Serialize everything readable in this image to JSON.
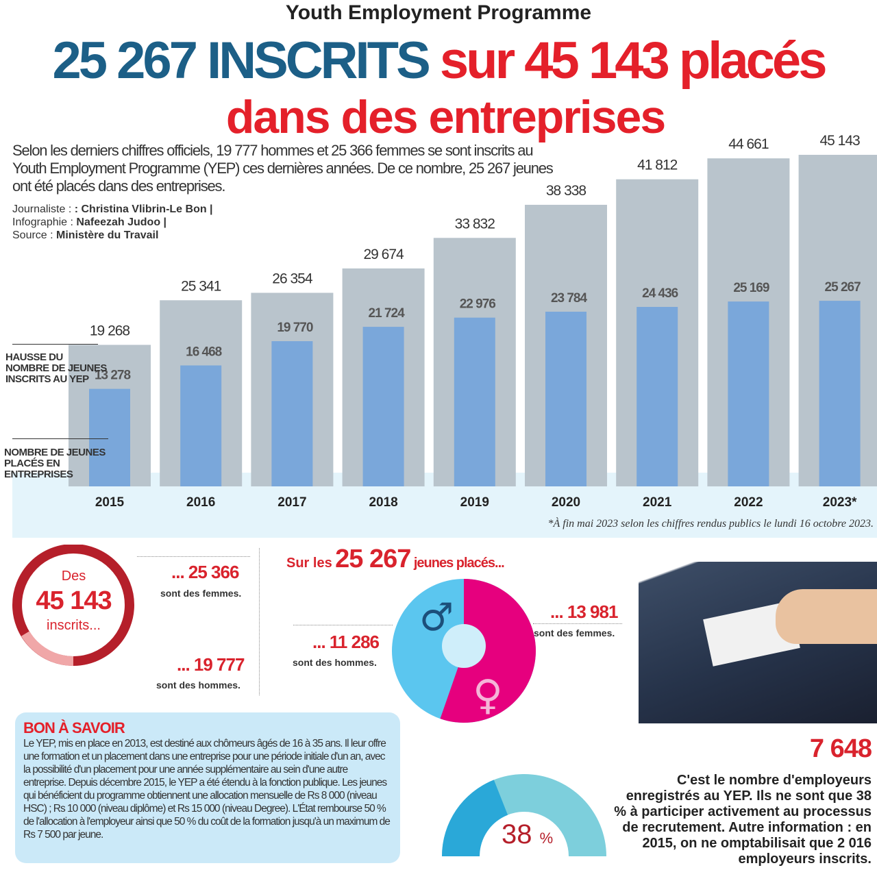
{
  "header": {
    "kicker": "Youth Employment Programme",
    "title_part1": "25 267 INSCRITS",
    "title_part2": "sur 45 143 placés",
    "title_line2": "dans des entreprises"
  },
  "intro": "Selon les derniers chiffres officiels, 19 777 hommes et 25 366 femmes se sont inscrits au Youth Employment Programme (YEP) ces dernières années. De ce nombre, 25 267 jeunes ont été placés dans des entreprises.",
  "credits": [
    {
      "label": "Journaliste : ",
      "value": ": Christina Vlibrin-Le Bon |"
    },
    {
      "label": "Infographie : ",
      "value": "Nafeezah Judoo |"
    },
    {
      "label": "Source : ",
      "value": "Ministère du Travail"
    }
  ],
  "colors": {
    "registered": "#b9c4cc",
    "placed": "#7aa7da",
    "title_blue": "#1c5f87",
    "red": "#e4202a",
    "male": "#5bc6ef",
    "female": "#e6007e"
  },
  "chart_data": {
    "type": "bar",
    "categories": [
      "2015",
      "2016",
      "2017",
      "2018",
      "2019",
      "2020",
      "2021",
      "2022",
      "2023*"
    ],
    "series": [
      {
        "name": "HAUSSE DU NOMBRE DE JEUNES INSCRITS AU YEP",
        "values": [
          19268,
          25341,
          26354,
          29674,
          33832,
          38338,
          41812,
          44661,
          45143
        ],
        "labels": [
          "19 268",
          "25 341",
          "26 354",
          "29 674",
          "33 832",
          "38 338",
          "41 812",
          "44 661",
          "45 143"
        ]
      },
      {
        "name": "NOMBRE DE JEUNES PLACÉS EN ENTREPRISES",
        "values": [
          13278,
          16468,
          19770,
          21724,
          22976,
          23784,
          24436,
          25169,
          25267
        ],
        "labels": [
          "13 278",
          "16 468",
          "19 770",
          "21 724",
          "22 976",
          "23 784",
          "24 436",
          "25 169",
          "25 267"
        ]
      }
    ],
    "footnote": "*À fin mai 2023 selon les chiffres rendus publics le lundi 16 octobre 2023."
  },
  "registered": {
    "prefix": "Des",
    "total": "45 143",
    "suffix": "inscrits...",
    "women": "... 25 366",
    "women_label": "sont des femmes.",
    "men": "... 19 777",
    "men_label": "sont des hommes.",
    "women_value": 25366,
    "men_value": 19777
  },
  "placed": {
    "prefix": "Sur les",
    "total": "25 267",
    "suffix": "jeunes placés...",
    "women": "... 13 981",
    "women_label": "sont des femmes.",
    "men": "... 11 286",
    "men_label": "sont des hommes.",
    "women_value": 13981,
    "men_value": 11286
  },
  "bon": {
    "title": "BON À SAVOIR",
    "text": "Le YEP, mis en place en 2013, est destiné aux chômeurs âgés de 16 à 35 ans. Il leur offre une formation et un placement dans une entreprise pour une période initiale d'un an, avec la possibilité d'un placement pour une année supplémentaire au sein d'une autre entreprise. Depuis décembre 2015, le YEP a été étendu à la fonction publique. Les jeunes qui bénéficient du programme obtiennent une allocation mensuelle de Rs 8 000 (niveau HSC) ; Rs 10 000 (niveau diplôme) et Rs 15 000 (niveau Degree). L'État rembourse 50 % de l'allocation à l'employeur ainsi que 50 % du coût de la formation jusqu'à un maximum de Rs 7 500 par jeune."
  },
  "employers": {
    "number": "7 648",
    "text": "C'est le nombre d'employeurs enregistrés au YEP. Ils ne sont que 38 % à participer activement au processus de recrutement. Autre information : en 2015, on ne omptabilisait que 2 016 employeurs inscrits.",
    "gauge_value": "38",
    "gauge_unit": "%",
    "gauge_percent": 38
  }
}
